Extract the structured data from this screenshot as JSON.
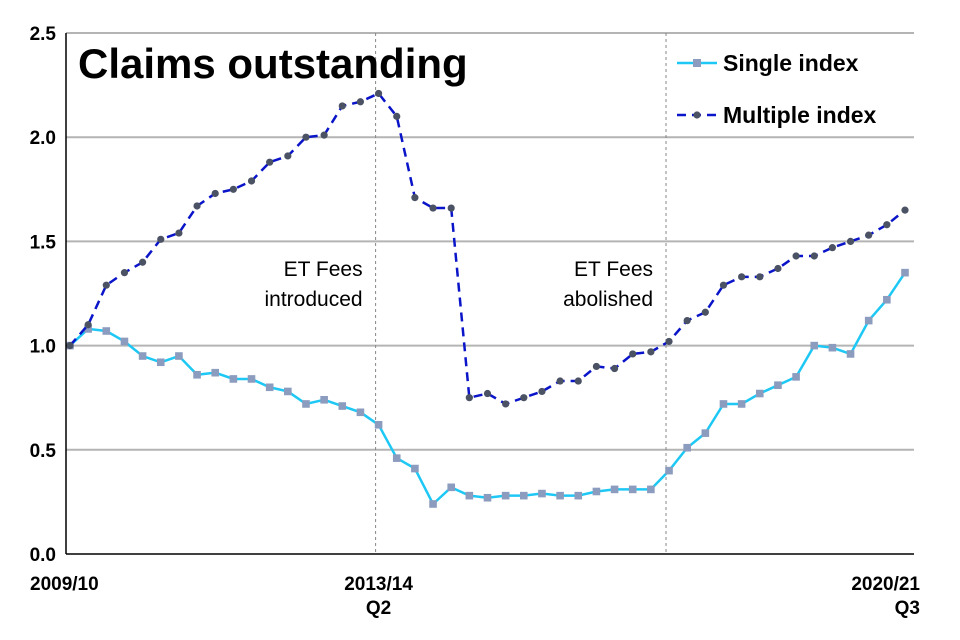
{
  "chart_data": {
    "type": "line",
    "title": "Claims outstanding",
    "xlabel": "",
    "ylabel": "",
    "ylim": [
      0,
      2.5
    ],
    "yticks": [
      "0.0",
      "0.5",
      "1.0",
      "1.5",
      "2.0",
      "2.5"
    ],
    "grid": true,
    "legend_position": "top-right",
    "x_tick_labels": [
      {
        "index": 0,
        "lines": [
          "2009/10"
        ]
      },
      {
        "index": 17,
        "lines": [
          "2013/14",
          "Q2"
        ]
      },
      {
        "index": 46,
        "lines": [
          "2020/21",
          "Q3"
        ]
      }
    ],
    "x_description": "Quarters from 2009/10 Q1 to 2020/21 Q3",
    "annotations": [
      {
        "index": 17,
        "lines": [
          "ET Fees",
          "introduced"
        ]
      },
      {
        "index": 33,
        "lines": [
          "ET Fees",
          "abolished"
        ]
      }
    ],
    "series": [
      {
        "name": "Single index",
        "color": "#1EC8F5",
        "marker_color": "#8C9CBE",
        "style": "solid",
        "values": [
          1.0,
          1.08,
          1.07,
          1.02,
          0.95,
          0.92,
          0.95,
          0.86,
          0.87,
          0.84,
          0.84,
          0.8,
          0.78,
          0.72,
          0.74,
          0.71,
          0.68,
          0.62,
          0.46,
          0.41,
          0.24,
          0.32,
          0.28,
          0.27,
          0.28,
          0.28,
          0.29,
          0.28,
          0.28,
          0.3,
          0.31,
          0.31,
          0.31,
          0.4,
          0.51,
          0.58,
          0.72,
          0.72,
          0.77,
          0.81,
          0.85,
          1.0,
          0.99,
          0.96,
          1.12,
          1.22,
          1.35
        ]
      },
      {
        "name": "Multiple index",
        "color": "#0A14C8",
        "marker_color": "#4A5264",
        "style": "dashed",
        "values": [
          1.0,
          1.1,
          1.29,
          1.35,
          1.4,
          1.51,
          1.54,
          1.67,
          1.73,
          1.75,
          1.79,
          1.88,
          1.91,
          2.0,
          2.01,
          2.15,
          2.17,
          2.21,
          2.1,
          1.71,
          1.66,
          1.66,
          0.75,
          0.77,
          0.72,
          0.75,
          0.78,
          0.83,
          0.83,
          0.9,
          0.89,
          0.96,
          0.97,
          1.02,
          1.12,
          1.16,
          1.29,
          1.33,
          1.33,
          1.37,
          1.43,
          1.43,
          1.47,
          1.5,
          1.53,
          1.58,
          1.65
        ]
      }
    ]
  }
}
